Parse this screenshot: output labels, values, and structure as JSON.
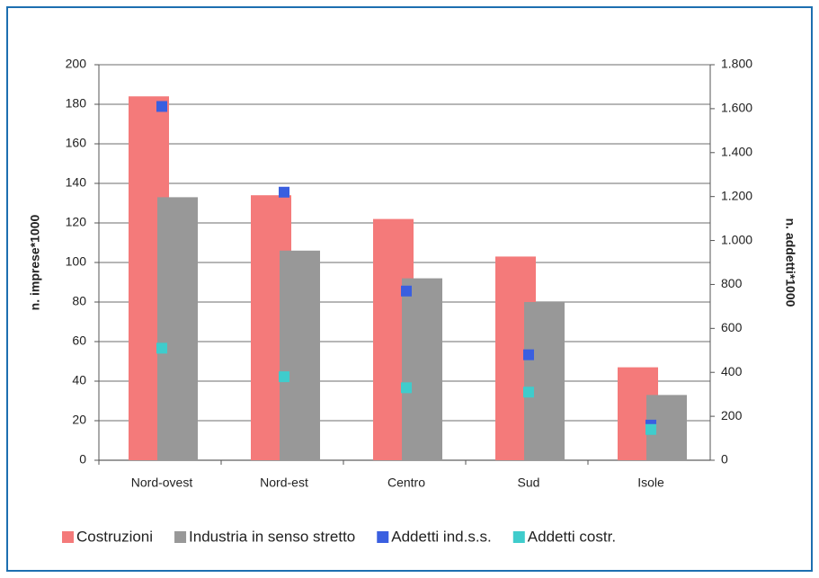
{
  "chart_data": {
    "type": "bar",
    "categories": [
      "Nord-ovest",
      "Nord-est",
      "Centro",
      "Sud",
      "Isole"
    ],
    "y_label": "n. imprese*1000",
    "y2_label": "n. addetti*1000",
    "ylim": [
      0,
      200
    ],
    "yticks": [
      0,
      20,
      40,
      60,
      80,
      100,
      120,
      140,
      160,
      180,
      200
    ],
    "y2lim": [
      0,
      1800
    ],
    "y2ticks": [
      0,
      200,
      400,
      600,
      800,
      {
        "value": 1000,
        "label": "1.000"
      },
      {
        "value": 1200,
        "label": "1.200"
      },
      {
        "value": 1400,
        "label": "1.400"
      },
      {
        "value": 1600,
        "label": "1.600"
      },
      {
        "value": 1800,
        "label": "1.800"
      }
    ],
    "grid": true,
    "legend": "bottom",
    "series": [
      {
        "name": "Costruzioni",
        "type": "bar",
        "color": "#f47a7a",
        "values": [
          184,
          134,
          122,
          103,
          47
        ]
      },
      {
        "name": "Industria in senso stretto",
        "type": "bar",
        "color": "#989898",
        "values": [
          133,
          106,
          92,
          80,
          33
        ]
      },
      {
        "name": "Addetti ind.s.s.",
        "type": "scatter",
        "axis": "y2",
        "color": "#3a5fe0",
        "values": [
          1610,
          1220,
          770,
          480,
          160
        ]
      },
      {
        "name": "Addetti costr.",
        "type": "scatter",
        "axis": "y2",
        "color": "#3fcccc",
        "values": [
          510,
          380,
          330,
          310,
          140
        ]
      }
    ]
  }
}
